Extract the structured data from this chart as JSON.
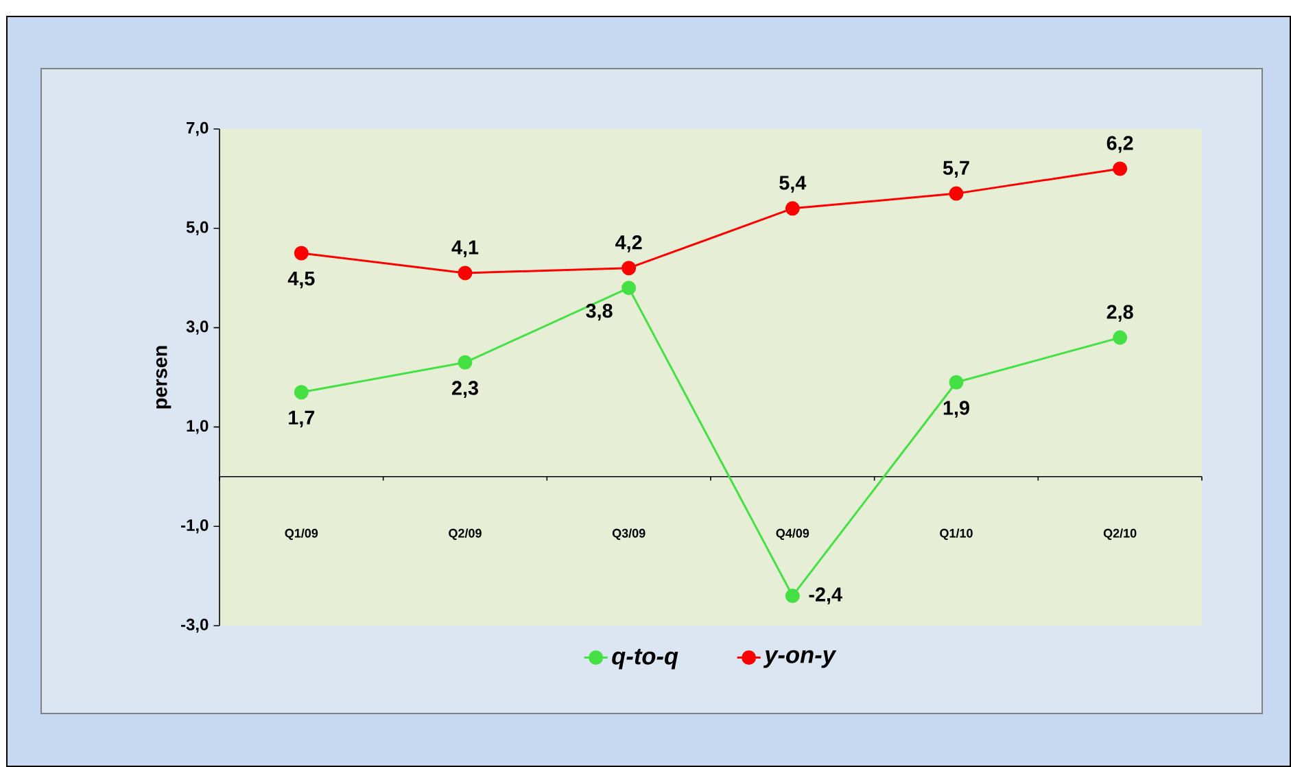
{
  "chart_data": {
    "type": "line",
    "categories": [
      "Q1/09",
      "Q2/09",
      "Q3/09",
      "Q4/09",
      "Q1/10",
      "Q2/10"
    ],
    "ylabel": "persen",
    "ylim": [
      -3,
      7
    ],
    "yticks": [
      {
        "value": -3,
        "label": "-3,0"
      },
      {
        "value": -1,
        "label": "-1,0"
      },
      {
        "value": 1,
        "label": "1,0"
      },
      {
        "value": 3,
        "label": "3,0"
      },
      {
        "value": 5,
        "label": "5,0"
      },
      {
        "value": 7,
        "label": "7,0"
      }
    ],
    "series": [
      {
        "name": "q-to-q",
        "color": "#44e044",
        "values": [
          1.7,
          2.3,
          3.8,
          -2.4,
          1.9,
          2.8
        ],
        "value_labels": [
          "1,7",
          "2,3",
          "3,8",
          "-2,4",
          "1,9",
          "2,8"
        ]
      },
      {
        "name": "y-on-y",
        "color": "#ff0000",
        "values": [
          4.5,
          4.1,
          4.2,
          5.4,
          5.7,
          6.2
        ],
        "value_labels": [
          "4,5",
          "4,1",
          "4,2",
          "5,4",
          "5,7",
          "6,2"
        ]
      }
    ],
    "legend": "bottom",
    "marker": "circle",
    "line_style": "solid",
    "grid": false
  }
}
